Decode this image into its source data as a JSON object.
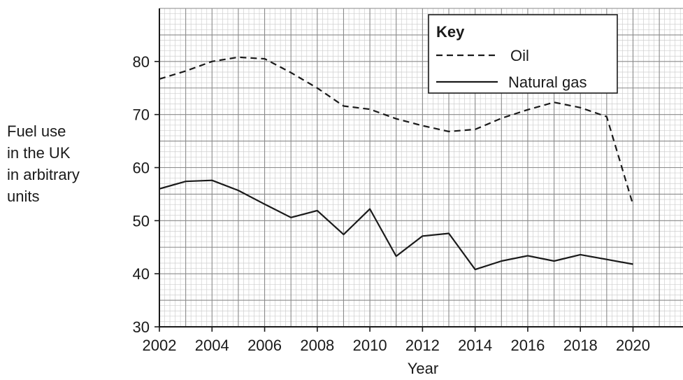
{
  "chart_data": {
    "type": "line",
    "title": "",
    "xlabel": "Year",
    "ylabel_lines": [
      "Fuel use",
      "in the UK",
      "in arbitrary",
      "units"
    ],
    "xlim": [
      2002,
      2021.9
    ],
    "ylim": [
      30,
      90
    ],
    "x_ticks": [
      2002,
      2004,
      2006,
      2008,
      2010,
      2012,
      2014,
      2016,
      2018,
      2020
    ],
    "y_ticks": [
      30,
      40,
      50,
      60,
      70,
      80
    ],
    "grid": true,
    "legend": {
      "title": "Key",
      "position": "top-right"
    },
    "series": [
      {
        "name": "Oil",
        "style": "dashed",
        "color": "#1a1a1a",
        "x": [
          2002,
          2003,
          2004,
          2005,
          2006,
          2007,
          2008,
          2009,
          2010,
          2011,
          2012,
          2013,
          2014,
          2015,
          2016,
          2017,
          2018,
          2019,
          2020
        ],
        "y": [
          76.7,
          78.2,
          80.0,
          80.8,
          80.5,
          77.9,
          75.0,
          71.6,
          71.0,
          69.2,
          67.9,
          66.8,
          67.2,
          69.3,
          70.9,
          72.3,
          71.3,
          69.6,
          53.0
        ]
      },
      {
        "name": "Natural gas",
        "style": "solid",
        "color": "#1a1a1a",
        "x": [
          2002,
          2003,
          2004,
          2005,
          2006,
          2007,
          2008,
          2009,
          2010,
          2011,
          2012,
          2013,
          2014,
          2015,
          2016,
          2017,
          2018,
          2019,
          2020
        ],
        "y": [
          56.0,
          57.4,
          57.6,
          55.7,
          53.1,
          50.6,
          51.9,
          47.4,
          52.2,
          43.3,
          47.1,
          47.6,
          40.8,
          42.4,
          43.4,
          42.4,
          43.6,
          42.7,
          41.8
        ]
      }
    ]
  }
}
